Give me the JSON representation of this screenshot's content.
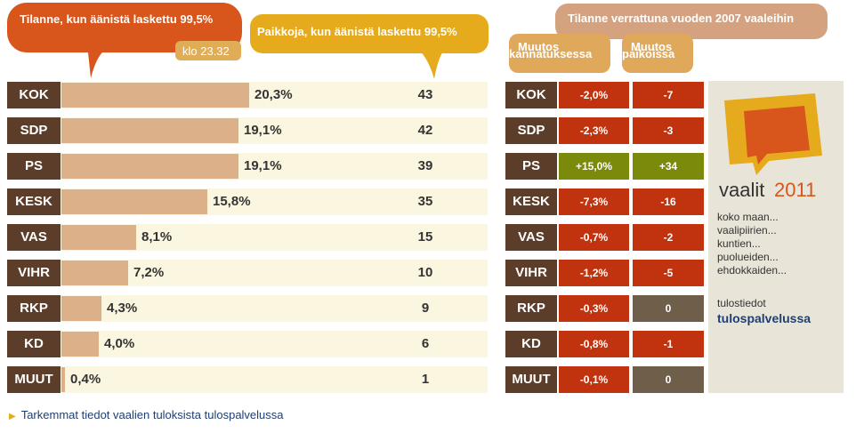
{
  "header": {
    "left_bubble": "Tilanne, kun äänistä laskettu 99,5%",
    "time_bubble": "klo 23.32",
    "seats_bubble": "Paikkoja, kun äänistä laskettu 99,5%",
    "comparison_bubble": "Tilanne verrattuna vuoden 2007 vaaleihin",
    "support_change_bubble_line1": "Muutos",
    "support_change_bubble_line2": "kannatuksessa",
    "seat_change_bubble_line1": "Muutos",
    "seat_change_bubble_line2": "paikoissa"
  },
  "colors": {
    "negative": "#c1320e",
    "positive": "#7c8a0c",
    "neutral": "#6e5e4a",
    "label_bg": "#5c3d2a",
    "bar": "#dcb089"
  },
  "chart_data": {
    "type": "bar",
    "categories": [
      "KOK",
      "SDP",
      "PS",
      "KESK",
      "VAS",
      "VIHR",
      "RKP",
      "KD",
      "MUUT"
    ],
    "series": [
      {
        "values": [
          20.3,
          19.1,
          19.1,
          15.8,
          8.1,
          7.2,
          4.3,
          4.0,
          0.4
        ]
      }
    ],
    "value_labels": [
      "20,3%",
      "19,1%",
      "19,1%",
      "15,8%",
      "8,1%",
      "7,2%",
      "4,3%",
      "4,0%",
      "0,4%"
    ],
    "seats": [
      "43",
      "42",
      "39",
      "35",
      "15",
      "10",
      "9",
      "6",
      "1"
    ],
    "support_change": [
      "-2,0%",
      "-2,3%",
      "+15,0%",
      "-7,3%",
      "-0,7%",
      "-1,2%",
      "-0,3%",
      "-0,8%",
      "-0,1%"
    ],
    "seat_change": [
      "-7",
      "-3",
      "+34",
      "-16",
      "-2",
      "-5",
      "0",
      "-1",
      "0"
    ],
    "support_change_sign": [
      "neg",
      "neg",
      "pos",
      "neg",
      "neg",
      "neg",
      "neg",
      "neg",
      "neg"
    ],
    "seat_change_sign": [
      "neg",
      "neg",
      "pos",
      "neg",
      "neg",
      "neg",
      "zero",
      "neg",
      "zero"
    ],
    "xlim": [
      0,
      25
    ]
  },
  "sidebar": {
    "logo_text": "vaalit",
    "logo_year": "2011",
    "links": [
      "koko maan...",
      "vaalipiirien...",
      "kuntien...",
      "puolueiden...",
      "ehdokkaiden..."
    ],
    "tulos_text": "tulostiedot",
    "tulos_link": "tulospalvelussa"
  },
  "footer": {
    "link": "Tarkemmat tiedot vaalien tuloksista tulospalvelussa"
  }
}
